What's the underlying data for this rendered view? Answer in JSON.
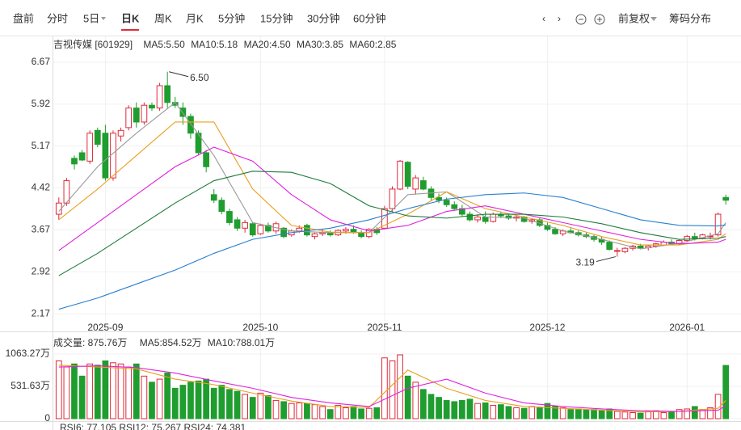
{
  "toolbar": {
    "tabs": [
      "盘前",
      "分时",
      "5日",
      "日K",
      "周K",
      "月K",
      "5分钟",
      "15分钟",
      "30分钟",
      "60分钟"
    ],
    "active": 3,
    "right": [
      "前复权",
      "筹码分布"
    ]
  },
  "chart_data": [
    {
      "type": "candlestick",
      "title": "吉视传媒 [601929]",
      "ohlc": [
        [
          3.95,
          4.25,
          3.85,
          4.15
        ],
        [
          4.15,
          4.6,
          4.1,
          4.55
        ],
        [
          4.95,
          5.0,
          4.75,
          4.85
        ],
        [
          5.05,
          5.1,
          4.9,
          4.92
        ],
        [
          4.9,
          5.45,
          4.85,
          5.4
        ],
        [
          5.45,
          5.5,
          5.15,
          5.2
        ],
        [
          5.4,
          5.55,
          4.55,
          4.6
        ],
        [
          4.6,
          5.45,
          4.55,
          5.4
        ],
        [
          5.35,
          5.5,
          5.25,
          5.45
        ],
        [
          5.5,
          5.9,
          5.45,
          5.85
        ],
        [
          5.85,
          5.95,
          5.5,
          5.6
        ],
        [
          5.6,
          5.95,
          5.55,
          5.9
        ],
        [
          5.9,
          5.95,
          5.8,
          5.85
        ],
        [
          5.85,
          6.3,
          5.8,
          6.25
        ],
        [
          6.25,
          6.5,
          5.85,
          5.95
        ],
        [
          5.95,
          6.05,
          5.85,
          5.9
        ],
        [
          5.85,
          5.95,
          5.55,
          5.7
        ],
        [
          5.7,
          5.75,
          5.3,
          5.4
        ],
        [
          5.4,
          5.45,
          5.0,
          5.05
        ],
        [
          5.05,
          5.1,
          4.7,
          4.8
        ],
        [
          4.3,
          4.4,
          4.15,
          4.2
        ],
        [
          4.2,
          4.25,
          3.95,
          4.0
        ],
        [
          4.0,
          4.05,
          3.75,
          3.8
        ],
        [
          3.85,
          3.9,
          3.65,
          3.7
        ],
        [
          3.7,
          3.85,
          3.62,
          3.8
        ],
        [
          3.78,
          3.8,
          3.55,
          3.58
        ],
        [
          3.6,
          3.78,
          3.58,
          3.75
        ],
        [
          3.75,
          3.8,
          3.62,
          3.65
        ],
        [
          3.65,
          3.82,
          3.6,
          3.78
        ],
        [
          3.7,
          3.72,
          3.52,
          3.55
        ],
        [
          3.58,
          3.68,
          3.55,
          3.65
        ],
        [
          3.65,
          3.75,
          3.62,
          3.7
        ],
        [
          3.75,
          3.78,
          3.55,
          3.58
        ],
        [
          3.55,
          3.62,
          3.5,
          3.6
        ],
        [
          3.6,
          3.68,
          3.56,
          3.62
        ],
        [
          3.62,
          3.66,
          3.55,
          3.58
        ],
        [
          3.58,
          3.68,
          3.56,
          3.66
        ],
        [
          3.65,
          3.72,
          3.6,
          3.68
        ],
        [
          3.68,
          3.75,
          3.6,
          3.62
        ],
        [
          3.62,
          3.66,
          3.52,
          3.55
        ],
        [
          3.55,
          3.7,
          3.52,
          3.68
        ],
        [
          3.68,
          3.72,
          3.58,
          3.62
        ],
        [
          3.7,
          4.1,
          3.68,
          4.05
        ],
        [
          4.05,
          4.45,
          4.0,
          4.4
        ],
        [
          4.4,
          4.92,
          4.38,
          4.9
        ],
        [
          4.88,
          4.9,
          4.4,
          4.45
        ],
        [
          4.4,
          4.65,
          4.3,
          4.6
        ],
        [
          4.55,
          4.62,
          4.38,
          4.4
        ],
        [
          4.4,
          4.45,
          4.2,
          4.25
        ],
        [
          4.25,
          4.32,
          4.15,
          4.2
        ],
        [
          4.2,
          4.25,
          4.08,
          4.12
        ],
        [
          4.12,
          4.18,
          4.02,
          4.05
        ],
        [
          4.05,
          4.12,
          3.9,
          3.95
        ],
        [
          3.95,
          4.0,
          3.82,
          3.85
        ],
        [
          3.85,
          3.95,
          3.8,
          3.9
        ],
        [
          3.9,
          4.0,
          3.78,
          3.82
        ],
        [
          3.82,
          3.98,
          3.8,
          3.95
        ],
        [
          3.95,
          4.0,
          3.88,
          3.92
        ],
        [
          3.92,
          3.96,
          3.85,
          3.88
        ],
        [
          3.88,
          3.95,
          3.82,
          3.9
        ],
        [
          3.9,
          3.92,
          3.8,
          3.82
        ],
        [
          3.82,
          3.88,
          3.78,
          3.85
        ],
        [
          3.85,
          3.88,
          3.72,
          3.75
        ],
        [
          3.75,
          3.8,
          3.65,
          3.68
        ],
        [
          3.68,
          3.72,
          3.58,
          3.6
        ],
        [
          3.6,
          3.68,
          3.56,
          3.65
        ],
        [
          3.65,
          3.7,
          3.6,
          3.62
        ],
        [
          3.62,
          3.66,
          3.55,
          3.58
        ],
        [
          3.58,
          3.62,
          3.52,
          3.55
        ],
        [
          3.55,
          3.58,
          3.46,
          3.5
        ],
        [
          3.5,
          3.55,
          3.4,
          3.45
        ],
        [
          3.45,
          3.48,
          3.3,
          3.32
        ],
        [
          3.3,
          3.35,
          3.19,
          3.3
        ],
        [
          3.28,
          3.36,
          3.25,
          3.34
        ],
        [
          3.34,
          3.4,
          3.3,
          3.38
        ],
        [
          3.38,
          3.42,
          3.32,
          3.35
        ],
        [
          3.35,
          3.4,
          3.3,
          3.38
        ],
        [
          3.38,
          3.44,
          3.35,
          3.42
        ],
        [
          3.4,
          3.48,
          3.38,
          3.45
        ],
        [
          3.45,
          3.5,
          3.4,
          3.42
        ],
        [
          3.42,
          3.5,
          3.4,
          3.48
        ],
        [
          3.48,
          3.58,
          3.45,
          3.55
        ],
        [
          3.55,
          3.62,
          3.48,
          3.52
        ],
        [
          3.52,
          3.6,
          3.5,
          3.58
        ],
        [
          3.55,
          3.62,
          3.5,
          3.56
        ],
        [
          3.58,
          3.98,
          3.55,
          3.95
        ],
        [
          4.25,
          4.3,
          4.12,
          4.2
        ]
      ],
      "up_color": "#e0293a",
      "down_color": "#1f9d2e",
      "xlabels": [
        {
          "index": 6,
          "label": "2025-09"
        },
        {
          "index": 26,
          "label": "2025-10"
        },
        {
          "index": 42,
          "label": "2025-11"
        },
        {
          "index": 63,
          "label": "2025-12"
        },
        {
          "index": 81,
          "label": "2026-01"
        }
      ],
      "ylim": [
        2.07,
        6.8
      ],
      "yticks": [
        6.67,
        5.92,
        5.17,
        4.42,
        3.67,
        2.92,
        2.17
      ],
      "series": [
        {
          "name": "MA5:5.50",
          "color": "#9a9a9a",
          "x": [
            0,
            5,
            10,
            15,
            20,
            25,
            30,
            35,
            40,
            45,
            50,
            55,
            60,
            65,
            70,
            75,
            80,
            85,
            86
          ],
          "values": [
            4.0,
            4.8,
            5.4,
            5.95,
            5.0,
            3.8,
            3.65,
            3.62,
            3.62,
            4.3,
            4.35,
            3.9,
            3.88,
            3.65,
            3.5,
            3.33,
            3.43,
            3.6,
            3.8
          ]
        },
        {
          "name": "MA10:5.18",
          "color": "#e8a020",
          "x": [
            0,
            5,
            10,
            15,
            20,
            25,
            30,
            35,
            40,
            45,
            50,
            55,
            60,
            65,
            70,
            75,
            80,
            85,
            86
          ],
          "values": [
            3.85,
            4.4,
            5.0,
            5.6,
            5.6,
            4.4,
            3.75,
            3.63,
            3.62,
            3.95,
            4.35,
            4.05,
            3.9,
            3.75,
            3.55,
            3.4,
            3.4,
            3.5,
            3.6
          ]
        },
        {
          "name": "MA20:4.50",
          "color": "#e020e0",
          "x": [
            0,
            5,
            10,
            15,
            20,
            25,
            30,
            35,
            40,
            45,
            50,
            55,
            60,
            65,
            70,
            75,
            80,
            85,
            86
          ],
          "values": [
            3.3,
            3.8,
            4.3,
            4.8,
            5.15,
            4.9,
            4.3,
            3.85,
            3.65,
            3.75,
            4.0,
            4.1,
            3.95,
            3.8,
            3.65,
            3.5,
            3.42,
            3.45,
            3.5
          ]
        },
        {
          "name": "MA30:3.85",
          "color": "#1e7a3a",
          "x": [
            0,
            5,
            10,
            15,
            20,
            25,
            30,
            35,
            40,
            45,
            50,
            55,
            60,
            65,
            70,
            75,
            80,
            85,
            86
          ],
          "values": [
            2.85,
            3.25,
            3.7,
            4.15,
            4.55,
            4.72,
            4.7,
            4.5,
            4.1,
            3.92,
            3.88,
            3.95,
            3.95,
            3.9,
            3.78,
            3.62,
            3.5,
            3.52,
            3.55
          ]
        },
        {
          "name": "MA60:2.85",
          "color": "#2a7fd0",
          "x": [
            0,
            5,
            10,
            15,
            20,
            25,
            30,
            35,
            40,
            45,
            50,
            55,
            60,
            65,
            70,
            75,
            80,
            85,
            86
          ],
          "values": [
            2.25,
            2.45,
            2.7,
            2.95,
            3.25,
            3.5,
            3.62,
            3.7,
            3.85,
            4.05,
            4.22,
            4.3,
            4.33,
            4.25,
            4.05,
            3.85,
            3.75,
            3.74,
            3.76
          ]
        }
      ],
      "annotations": [
        {
          "index": 14,
          "value": 6.5,
          "label": "6.50"
        },
        {
          "index": 72,
          "value": 3.19,
          "label": "3.19"
        }
      ]
    },
    {
      "type": "bar",
      "title": "成交量: 875.76万",
      "values": [
        950,
        850,
        900,
        700,
        900,
        880,
        950,
        920,
        900,
        850,
        900,
        700,
        600,
        650,
        750,
        500,
        550,
        600,
        620,
        650,
        500,
        550,
        480,
        450,
        400,
        350,
        420,
        380,
        300,
        280,
        250,
        260,
        250,
        230,
        200,
        150,
        220,
        180,
        200,
        160,
        170,
        180,
        1000,
        950,
        1050,
        700,
        600,
        480,
        400,
        350,
        300,
        280,
        300,
        320,
        250,
        260,
        220,
        230,
        200,
        180,
        170,
        200,
        190,
        250,
        200,
        180,
        150,
        160,
        140,
        150,
        130,
        160,
        120,
        110,
        100,
        90,
        120,
        130,
        100,
        120,
        150,
        160,
        200,
        150,
        180,
        400,
        875.76
      ],
      "ylim": [
        0,
        1143
      ],
      "yticks": [
        {
          "value": 1063.27,
          "label": "1063.27万"
        },
        {
          "value": 531.63,
          "label": "531.63万"
        },
        0
      ],
      "series": [
        {
          "name": "MA5:854.52万",
          "color": "#e8a020",
          "x": [
            0,
            5,
            10,
            15,
            20,
            25,
            30,
            35,
            40,
            45,
            50,
            55,
            60,
            65,
            70,
            75,
            80,
            85,
            86
          ],
          "values": [
            880,
            850,
            820,
            650,
            560,
            420,
            290,
            200,
            185,
            800,
            500,
            300,
            200,
            170,
            140,
            110,
            120,
            170,
            300
          ]
        },
        {
          "name": "MA10:788.01万",
          "color": "#e020e0",
          "x": [
            0,
            5,
            10,
            15,
            20,
            25,
            30,
            35,
            40,
            45,
            50,
            55,
            60,
            65,
            70,
            75,
            80,
            85,
            86
          ],
          "values": [
            850,
            870,
            840,
            750,
            620,
            500,
            350,
            260,
            200,
            500,
            650,
            420,
            260,
            200,
            160,
            130,
            120,
            140,
            210
          ]
        }
      ]
    }
  ],
  "footer": "RSI6: 77.105  RSI12: 75.267  RSI24: 74.381"
}
